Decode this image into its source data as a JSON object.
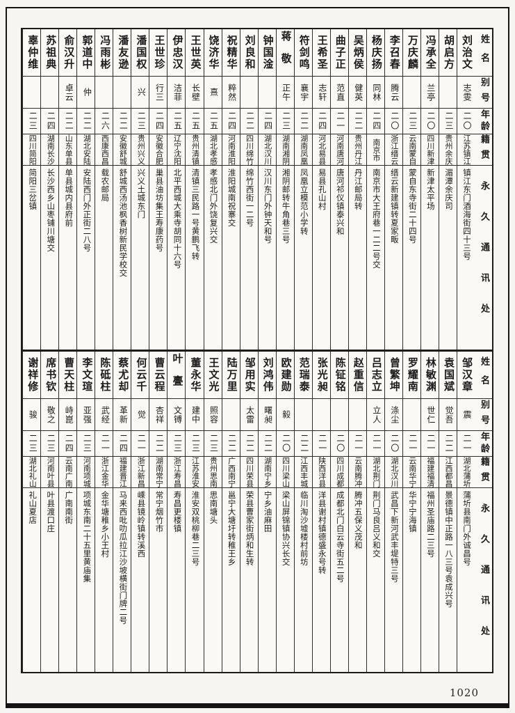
{
  "page": {
    "number": "1020"
  },
  "headers": {
    "name": "姓名",
    "alias": "别号",
    "age": "年龄",
    "native": "籍贯",
    "address": "永久通讯处"
  },
  "tables": [
    {
      "entries": [
        {
          "name": "刘治文",
          "alias": "志雯",
          "age": "二〇",
          "native": "江苏镇江",
          "address": "镇江东门酒海街四十三号"
        },
        {
          "name": "胡启方",
          "alias": "",
          "age": "二三",
          "native": "贵州余庆",
          "address": "湄潭余庆司"
        },
        {
          "name": "冯承全",
          "alias": "兰亭",
          "age": "二〇",
          "native": "四川新津",
          "address": "新津太平场"
        },
        {
          "name": "万庆麟",
          "alias": "",
          "age": "二三",
          "native": "云南蒙自",
          "address": "蒙自东寺街二十四号"
        },
        {
          "name": "李召春",
          "alias": "腾云",
          "age": "二〇",
          "native": "浙江缙云",
          "address": "缙云新建镇转夏家畈"
        },
        {
          "name": "杨庆扬",
          "alias": "同林",
          "age": "二四",
          "native": "南京市",
          "address": "南京市大王府巷一二二号交"
        },
        {
          "name": "吴炳侯",
          "alias": "健英",
          "age": "二二",
          "native": "贵州丹江",
          "address": "丹江邮局转"
        },
        {
          "name": "曲子正",
          "alias": "范直",
          "age": "二一",
          "native": "河南唐河",
          "address": "唐河祁仪镇泰兴和"
        },
        {
          "name": "王希圣",
          "alias": "志轩",
          "age": "二四",
          "native": "河北易县",
          "address": "易县孔山村"
        },
        {
          "name": "符剑鸣",
          "alias": "襄宇",
          "age": "二二",
          "native": "湖南凤凰",
          "address": "凤凰立模范小学转"
        },
        {
          "name": "蒋敬",
          "alias": "正午",
          "age": "二三",
          "native": "湖南湘阴",
          "address": "湘阴邮转牛角巷三号"
        },
        {
          "name": "钟国淦",
          "alias": "",
          "age": "二四",
          "native": "湖北汉川",
          "address": "汉川东门外钟天和号"
        },
        {
          "name": "刘良和",
          "alias": "",
          "age": "二二",
          "native": "四川绵竹",
          "address": "绵竹西街一二号"
        },
        {
          "name": "祝精华",
          "alias": "粹然",
          "age": "二四",
          "native": "河南淮阳",
          "address": "淮阳城南祝寨交"
        },
        {
          "name": "饶济华",
          "alias": "熹",
          "age": "二五",
          "native": "湖北孝感",
          "address": "孝感北门外饶复兴交"
        },
        {
          "name": "王世英",
          "alias": "长壁",
          "age": "二五",
          "native": "贵州清镇",
          "address": "清镇三民路一号黄鹏飞转"
        },
        {
          "name": "伊忠汉",
          "alias": "洁菲",
          "age": "二五",
          "native": "辽宁沈阳",
          "address": "北平西城大乘寺胡同十六号"
        },
        {
          "name": "王世珍",
          "alias": "行三",
          "age": "二四",
          "native": "安徽合肥",
          "address": "巢县油坊集王寿康药号"
        },
        {
          "name": "潘国权",
          "alias": "兴",
          "age": "二三",
          "native": "贵州兴义",
          "address": "兴义土城东门"
        },
        {
          "name": "潘友逊",
          "alias": "",
          "age": "二二",
          "native": "安徽舒城",
          "address": "舒城西汤池枫香树新民学校交"
        },
        {
          "name": "冯雨彬",
          "alias": "",
          "age": "二六",
          "native": "西康西昌",
          "address": "载农邮局"
        },
        {
          "name": "郭道中",
          "alias": "仲",
          "age": "二二",
          "native": "湖北安陆",
          "address": "安陆西门外正街二八号"
        },
        {
          "name": "俞汉升",
          "alias": "卓云",
          "age": "二二",
          "native": "山东单县",
          "address": "单县城内县府前"
        },
        {
          "name": "苏祖典",
          "alias": "",
          "age": "二四",
          "native": "湖南长沙",
          "address": "长沙西乡山枣铺川塘交"
        },
        {
          "name": "辜仲维",
          "alias": "",
          "age": "二三",
          "native": "四川简阳",
          "address": "简阳三岔镇"
        }
      ]
    },
    {
      "entries": [
        {
          "name": "邹汉章",
          "alias": "震",
          "age": "二一",
          "native": "湖北蒲圻",
          "address": "蒲圻县南门外诚昌号"
        },
        {
          "name": "袁国斌",
          "alias": "觉吾",
          "age": "二二",
          "native": "江西都昌",
          "address": "景德镇中正路一八三号袁成兴号"
        },
        {
          "name": "林敏渊",
          "alias": "世仁",
          "age": "二一",
          "native": "福建福清",
          "address": "福州圣庙路二三号"
        },
        {
          "name": "罗耀南",
          "alias": "",
          "age": "二一",
          "native": "云南华宁",
          "address": "华宁宁海镇"
        },
        {
          "name": "曾繁坤",
          "alias": "涤尘",
          "age": "二〇",
          "native": "湖北汉川",
          "address": "武昌下新河武丰堤特三号"
        },
        {
          "name": "吕志立",
          "alias": "立人",
          "age": "二一",
          "native": "湖北荆门",
          "address": "荆门马良吕义和交"
        },
        {
          "name": "赵重信",
          "alias": "",
          "age": "二一",
          "native": "云南腾冲",
          "address": "腾冲五保义茂和"
        },
        {
          "name": "陈钲铭",
          "alias": "",
          "age": "二〇",
          "native": "四川成都",
          "address": "成都北门白云寺街五二号"
        },
        {
          "name": "张光昶",
          "alias": "",
          "age": "二一",
          "native": "陕西洋县",
          "address": "洋县谢村镇德盛永号转"
        },
        {
          "name": "范瑞泰",
          "alias": "",
          "age": "二二",
          "native": "江西丰城",
          "address": "临川淘沙墟楼村前坊"
        },
        {
          "name": "欧建勋",
          "alias": "毅",
          "age": "二〇",
          "native": "四川梁山",
          "address": "梁山屏锦镇协兴长交"
        },
        {
          "name": "刘鸿伟",
          "alias": "曙昶",
          "age": "二二",
          "native": "湖南宁乡",
          "address": "宁乡油麻田"
        },
        {
          "name": "邹用实",
          "alias": "太雷",
          "age": "二二",
          "native": "四川荣县",
          "address": "荣县曹家街炳和生转"
        },
        {
          "name": "陆万里",
          "alias": "",
          "age": "二二",
          "native": "广西南宁",
          "address": "邕宁大塘圩转稚王乡"
        },
        {
          "name": "王文光",
          "alias": "照容",
          "age": "二三",
          "native": "贵州思南",
          "address": "思南塘头"
        },
        {
          "name": "董永华",
          "alias": "建中",
          "age": "二三",
          "native": "江苏淮安",
          "address": "淮安双桃柳巷二三号"
        },
        {
          "name": "叶亹",
          "alias": "文镈",
          "age": "二三",
          "native": "浙江寿昌",
          "address": "寿昌更楼镇"
        },
        {
          "name": "曹云程",
          "alias": "杏祥",
          "age": "二二",
          "native": "湖南常宁",
          "address": "常宁烟竹市"
        },
        {
          "name": "何云千",
          "alias": "觉",
          "age": "二一",
          "native": "浙江新昌",
          "address": "嵊县镜岭镇转溪西"
        },
        {
          "name": "蔡尤却",
          "alias": "革新",
          "age": "二四",
          "native": "福建晋江",
          "address": "马来西吡叻瓜拉江沙坡横街门牌二号"
        },
        {
          "name": "陈砥柱",
          "alias": "武经",
          "age": "二一",
          "native": "浙江金华",
          "address": "金华塘稚乡小王村"
        },
        {
          "name": "李文瑄",
          "alias": "亚强",
          "age": "二三",
          "native": "河南项城",
          "address": "项城东南二十五里黄庙集"
        },
        {
          "name": "曹天柱",
          "alias": "峙崑",
          "age": "二四",
          "native": "云南广南",
          "address": "广南南街"
        },
        {
          "name": "席书钦",
          "alias": "敬之",
          "age": "二三",
          "native": "河南叶县",
          "address": "叶县渡口庄"
        },
        {
          "name": "谢祥修",
          "alias": "骏",
          "age": "二三",
          "native": "湖北礼山",
          "address": "礼山夏店"
        }
      ]
    }
  ]
}
